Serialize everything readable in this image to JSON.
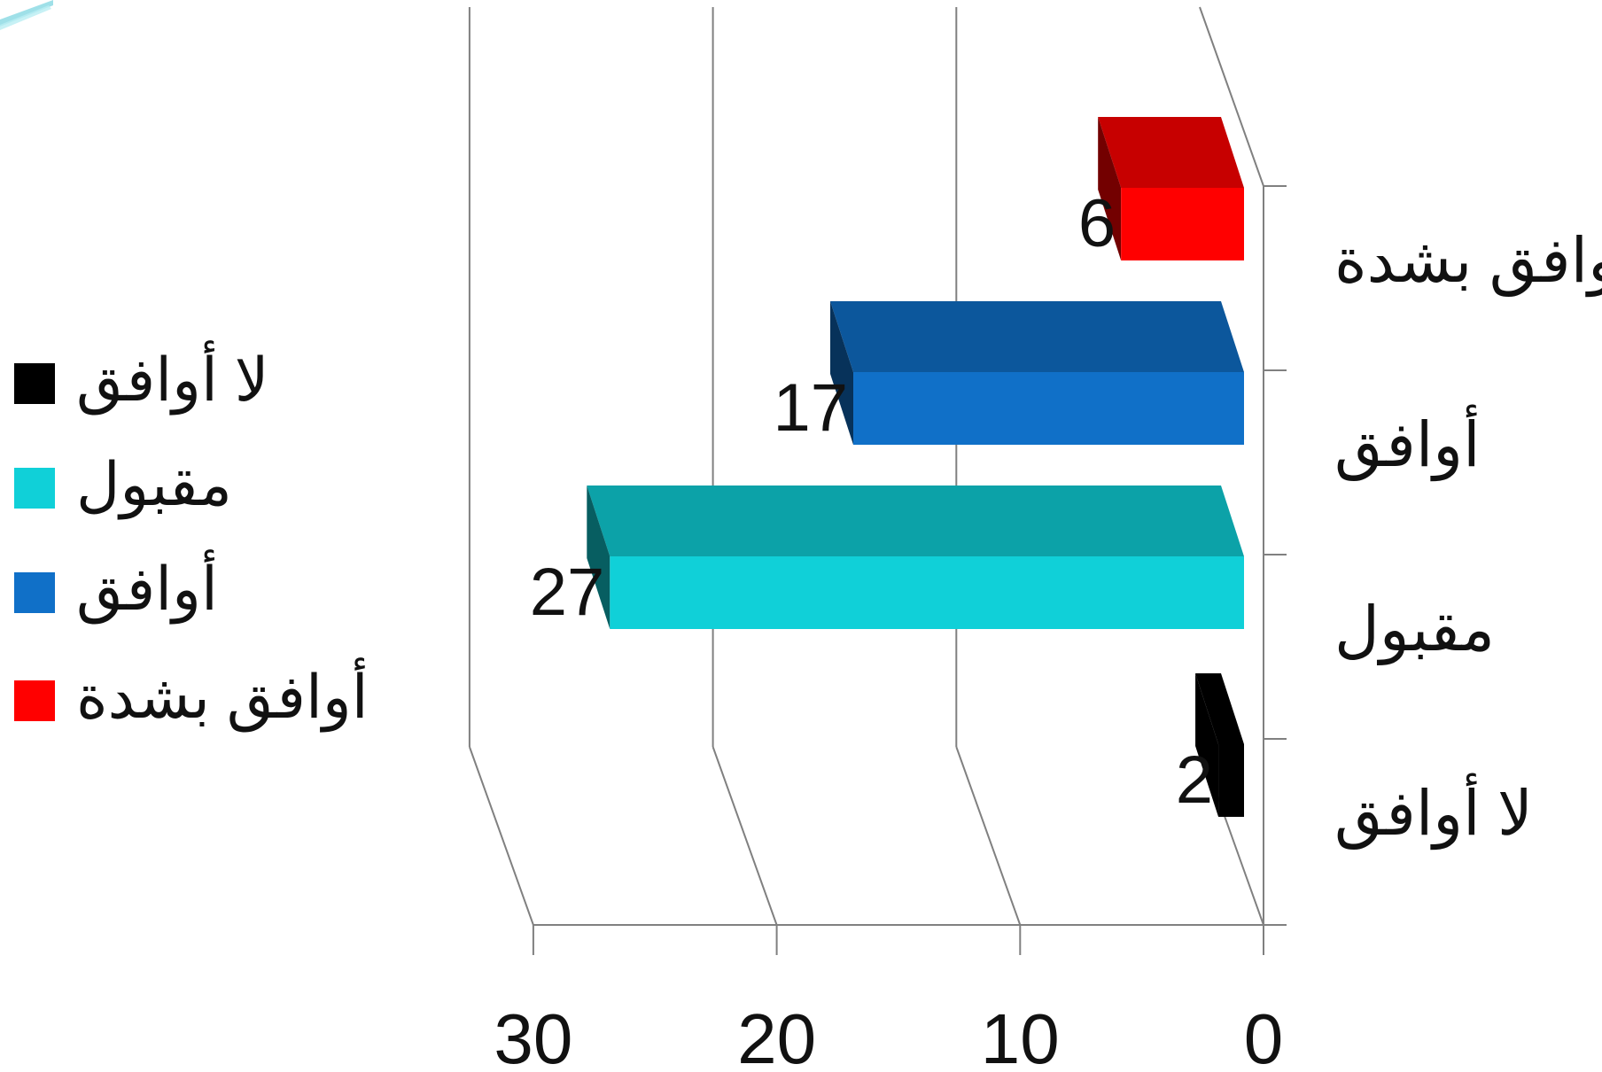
{
  "chart_data": {
    "type": "bar",
    "orientation": "horizontal-3d",
    "x_direction": "reversed",
    "categories": [
      "أوافق بشدة",
      "أوافق",
      "مقبول",
      "لا أوافق"
    ],
    "values": [
      6,
      17,
      27,
      2
    ],
    "colors": {
      "أوافق بشدة": "#ff0000",
      "أوافق": "#1070c8",
      "مقبول": "#10d0d8",
      "لا أوافق": "#000000"
    },
    "xlim": [
      0,
      30
    ],
    "ticks": [
      {
        "value": 0,
        "label": "0"
      },
      {
        "value": 10,
        "label": "10"
      },
      {
        "value": 20,
        "label": "20"
      },
      {
        "value": 30,
        "label": "30"
      }
    ],
    "grid": true,
    "legend": {
      "position": "left",
      "entries": [
        "لا أوافق",
        "مقبول",
        "أوافق",
        "أوافق بشدة"
      ]
    }
  }
}
